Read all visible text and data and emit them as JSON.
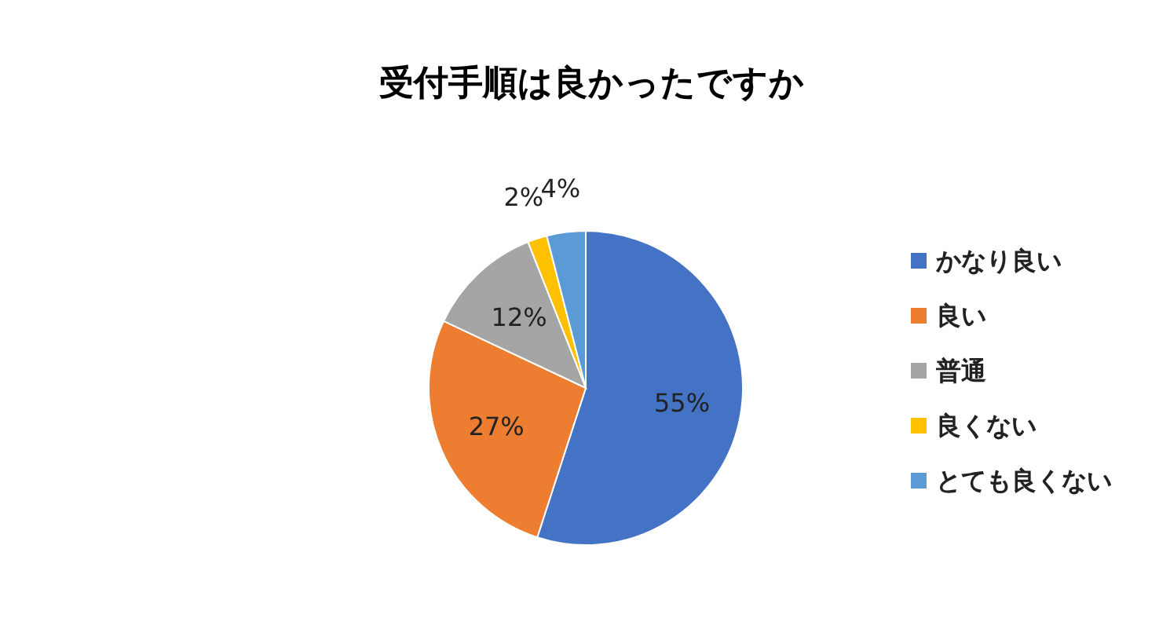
{
  "chart_data": {
    "type": "pie",
    "title": "受付手順は良かったですか",
    "categories": [
      "かなり良い",
      "良い",
      "普通",
      "良くない",
      "とても良くない"
    ],
    "values": [
      55,
      27,
      12,
      2,
      4
    ],
    "value_labels": [
      "55%",
      "27%",
      "12%",
      "2%",
      "4%"
    ],
    "colors": [
      "#4472c4",
      "#ed7d31",
      "#a5a5a5",
      "#ffc000",
      "#5b9bd5"
    ],
    "legend": "right"
  }
}
